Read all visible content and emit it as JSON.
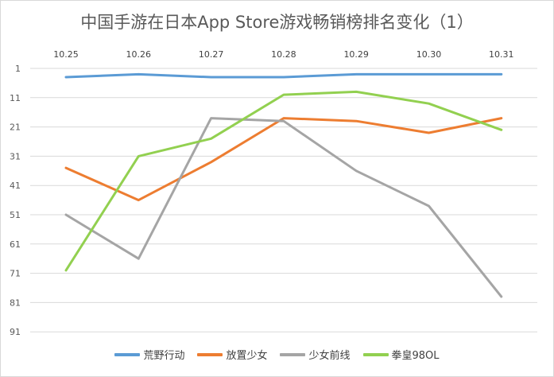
{
  "chart_data": {
    "type": "line",
    "title": "中国手游在日本App Store游戏畅销榜排名变化（1）",
    "xlabel": "",
    "ylabel": "",
    "x": [
      "10.25",
      "10.26",
      "10.27",
      "10.28",
      "10.29",
      "10.30",
      "10.31"
    ],
    "ylim": [
      1,
      101
    ],
    "y_reversed": true,
    "y_ticks": [
      1,
      11,
      21,
      31,
      41,
      51,
      61,
      71,
      81,
      91
    ],
    "x_axis_position": "top",
    "grid": true,
    "legend_position": "bottom",
    "series": [
      {
        "name": "荒野行动",
        "color": "#5b9bd5",
        "values": [
          4,
          3,
          4,
          4,
          3,
          3,
          3
        ]
      },
      {
        "name": "放置少女",
        "color": "#ed7d31",
        "values": [
          35,
          46,
          33,
          18,
          19,
          23,
          18
        ]
      },
      {
        "name": "少女前线",
        "color": "#a5a5a5",
        "values": [
          51,
          66,
          18,
          19,
          36,
          48,
          79
        ]
      },
      {
        "name": "拳皇98OL",
        "color": "#92d050",
        "values": [
          70,
          31,
          25,
          10,
          9,
          13,
          22
        ]
      }
    ]
  }
}
